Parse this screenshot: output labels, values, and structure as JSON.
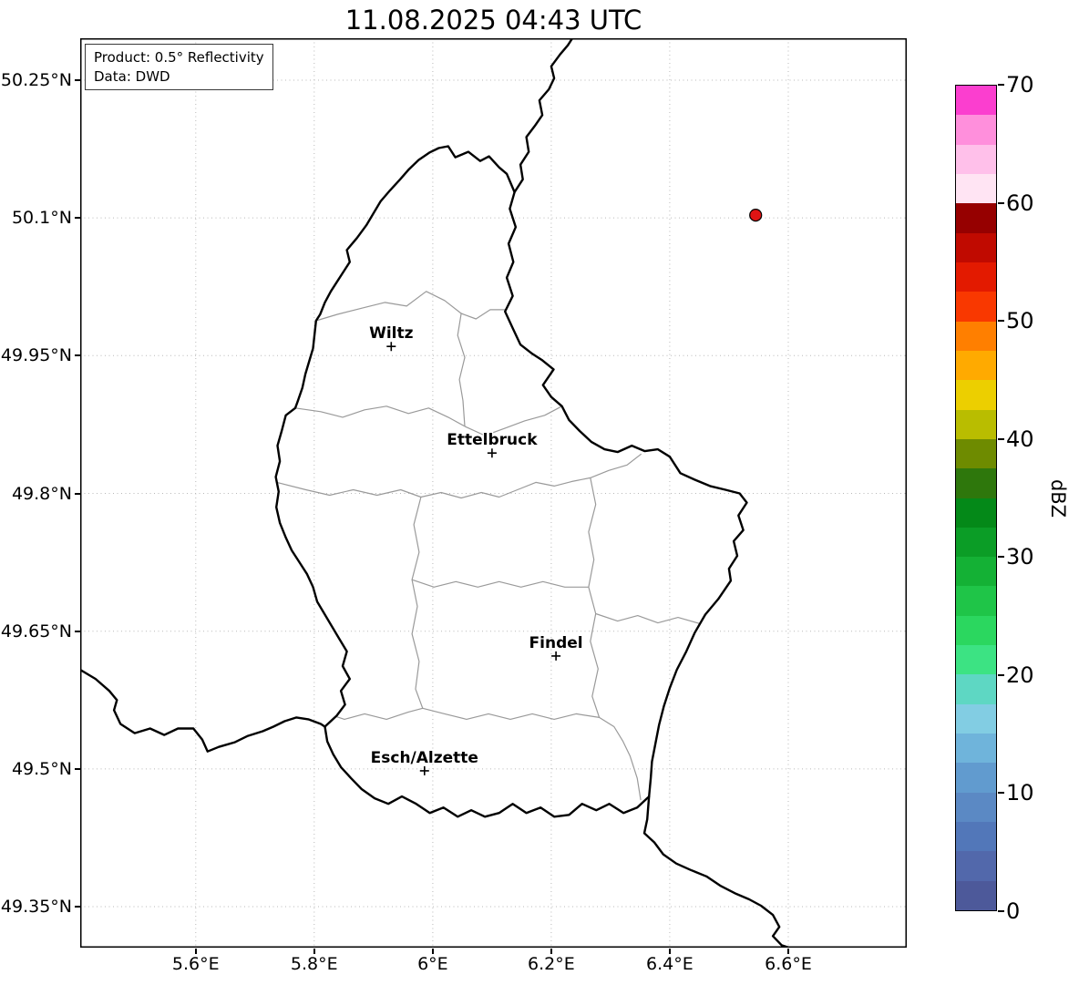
{
  "title": "11.08.2025 04:43 UTC",
  "info_box": {
    "line1": "Product: 0.5° Reflectivity",
    "line2": "Data: DWD"
  },
  "axes": {
    "x_ticks": [
      {
        "label": "5.6°E",
        "lon": 5.6
      },
      {
        "label": "5.8°E",
        "lon": 5.8
      },
      {
        "label": "6°E",
        "lon": 6.0
      },
      {
        "label": "6.2°E",
        "lon": 6.2
      },
      {
        "label": "6.4°E",
        "lon": 6.4
      },
      {
        "label": "6.6°E",
        "lon": 6.6
      }
    ],
    "y_ticks": [
      {
        "label": "50.25°N",
        "lat": 50.25
      },
      {
        "label": "50.1°N",
        "lat": 50.1
      },
      {
        "label": "49.95°N",
        "lat": 49.95
      },
      {
        "label": "49.8°N",
        "lat": 49.8
      },
      {
        "label": "49.65°N",
        "lat": 49.65
      },
      {
        "label": "49.5°N",
        "lat": 49.5
      },
      {
        "label": "49.35°N",
        "lat": 49.35
      }
    ],
    "grid_style": "dotted"
  },
  "colorbar": {
    "label": "dBZ",
    "range": [
      0,
      70
    ],
    "ticks": [
      0,
      10,
      20,
      30,
      40,
      50,
      60,
      70
    ],
    "colors": [
      "#4d599a",
      "#5268ab",
      "#5277b9",
      "#5b89c4",
      "#619bcf",
      "#6fb4db",
      "#82cde3",
      "#5ed7c3",
      "#3ce383",
      "#2bd75f",
      "#1fc548",
      "#14b135",
      "#0b9d26",
      "#048918",
      "#2e770c",
      "#6e8b00",
      "#b9bd00",
      "#eccf00",
      "#ffaa00",
      "#ff7f00",
      "#f93800",
      "#e31a00",
      "#c00a00",
      "#960000",
      "#ffe4f3",
      "#ffc0ea",
      "#ff8fdc",
      "#fb3ecf"
    ]
  },
  "cities": [
    {
      "name": "Wiltz",
      "lon": 5.93,
      "lat": 49.96
    },
    {
      "name": "Ettelbruck",
      "lon": 6.1,
      "lat": 49.844
    },
    {
      "name": "Findel",
      "lon": 6.208,
      "lat": 49.623
    },
    {
      "name": "Esch/Alzette",
      "lon": 5.986,
      "lat": 49.498
    }
  ],
  "radar_points": [
    {
      "lon": 6.545,
      "lat": 50.103,
      "color": "#e01414"
    }
  ],
  "map": {
    "lon_range": [
      5.405,
      6.8
    ],
    "lat_range": [
      49.3054,
      50.2956
    ],
    "country_border": [
      [
        6.026,
        50.178
      ],
      [
        6.038,
        50.166
      ],
      [
        6.06,
        50.172
      ],
      [
        6.08,
        50.162
      ],
      [
        6.095,
        50.167
      ],
      [
        6.112,
        50.155
      ],
      [
        6.125,
        50.148
      ],
      [
        6.138,
        50.128
      ],
      [
        6.13,
        50.11
      ],
      [
        6.14,
        50.09
      ],
      [
        6.128,
        50.072
      ],
      [
        6.136,
        50.052
      ],
      [
        6.125,
        50.035
      ],
      [
        6.135,
        50.015
      ],
      [
        6.122,
        49.998
      ],
      [
        6.135,
        49.98
      ],
      [
        6.148,
        49.962
      ],
      [
        6.168,
        49.952
      ],
      [
        6.185,
        49.945
      ],
      [
        6.204,
        49.935
      ],
      [
        6.186,
        49.918
      ],
      [
        6.2,
        49.905
      ],
      [
        6.218,
        49.895
      ],
      [
        6.23,
        49.88
      ],
      [
        6.248,
        49.868
      ],
      [
        6.268,
        49.856
      ],
      [
        6.29,
        49.848
      ],
      [
        6.312,
        49.845
      ],
      [
        6.336,
        49.852
      ],
      [
        6.358,
        49.846
      ],
      [
        6.38,
        49.848
      ],
      [
        6.4,
        49.84
      ],
      [
        6.418,
        49.822
      ],
      [
        6.442,
        49.815
      ],
      [
        6.468,
        49.808
      ],
      [
        6.494,
        49.804
      ],
      [
        6.518,
        49.8
      ],
      [
        6.53,
        49.79
      ],
      [
        6.516,
        49.776
      ],
      [
        6.524,
        49.76
      ],
      [
        6.508,
        49.748
      ],
      [
        6.514,
        49.732
      ],
      [
        6.5,
        49.718
      ],
      [
        6.503,
        49.705
      ],
      [
        6.482,
        49.685
      ],
      [
        6.46,
        49.668
      ],
      [
        6.442,
        49.648
      ],
      [
        6.428,
        49.628
      ],
      [
        6.412,
        49.608
      ],
      [
        6.4,
        49.588
      ],
      [
        6.39,
        49.568
      ],
      [
        6.382,
        49.548
      ],
      [
        6.376,
        49.528
      ],
      [
        6.37,
        49.508
      ],
      [
        6.368,
        49.49
      ],
      [
        6.365,
        49.47
      ],
      [
        6.345,
        49.458
      ],
      [
        6.322,
        49.452
      ],
      [
        6.298,
        49.462
      ],
      [
        6.276,
        49.455
      ],
      [
        6.252,
        49.462
      ],
      [
        6.23,
        49.45
      ],
      [
        6.205,
        49.448
      ],
      [
        6.182,
        49.458
      ],
      [
        6.158,
        49.452
      ],
      [
        6.135,
        49.462
      ],
      [
        6.112,
        49.452
      ],
      [
        6.088,
        49.448
      ],
      [
        6.065,
        49.455
      ],
      [
        6.042,
        49.448
      ],
      [
        6.018,
        49.458
      ],
      [
        5.995,
        49.452
      ],
      [
        5.972,
        49.462
      ],
      [
        5.948,
        49.47
      ],
      [
        5.925,
        49.462
      ],
      [
        5.902,
        49.468
      ],
      [
        5.88,
        49.478
      ],
      [
        5.862,
        49.49
      ],
      [
        5.845,
        49.502
      ],
      [
        5.832,
        49.516
      ],
      [
        5.822,
        49.53
      ],
      [
        5.818,
        49.546
      ],
      [
        5.838,
        49.558
      ],
      [
        5.852,
        49.57
      ],
      [
        5.845,
        49.585
      ],
      [
        5.86,
        49.598
      ],
      [
        5.848,
        49.612
      ],
      [
        5.855,
        49.628
      ],
      [
        5.842,
        49.642
      ],
      [
        5.83,
        49.655
      ],
      [
        5.818,
        49.668
      ],
      [
        5.805,
        49.682
      ],
      [
        5.798,
        49.698
      ],
      [
        5.788,
        49.712
      ],
      [
        5.775,
        49.725
      ],
      [
        5.762,
        49.738
      ],
      [
        5.752,
        49.752
      ],
      [
        5.742,
        49.768
      ],
      [
        5.736,
        49.785
      ],
      [
        5.74,
        49.802
      ],
      [
        5.735,
        49.818
      ],
      [
        5.742,
        49.835
      ],
      [
        5.738,
        49.852
      ],
      [
        5.745,
        49.868
      ],
      [
        5.752,
        49.885
      ],
      [
        5.768,
        49.893
      ],
      [
        5.772,
        49.9
      ],
      [
        5.78,
        49.915
      ],
      [
        5.785,
        49.93
      ],
      [
        5.792,
        49.945
      ],
      [
        5.798,
        49.958
      ],
      [
        5.8,
        49.97
      ],
      [
        5.803,
        49.988
      ],
      [
        5.81,
        49.995
      ],
      [
        5.818,
        50.008
      ],
      [
        5.828,
        50.02
      ],
      [
        5.84,
        50.032
      ],
      [
        5.85,
        50.042
      ],
      [
        5.86,
        50.052
      ],
      [
        5.855,
        50.065
      ],
      [
        5.872,
        50.078
      ],
      [
        5.888,
        50.092
      ],
      [
        5.9,
        50.105
      ],
      [
        5.912,
        50.118
      ],
      [
        5.928,
        50.13
      ],
      [
        5.945,
        50.142
      ],
      [
        5.96,
        50.153
      ],
      [
        5.976,
        50.163
      ],
      [
        5.994,
        50.171
      ],
      [
        6.01,
        50.176
      ]
    ],
    "neighbor_borders": [
      [
        [
          6.138,
          50.128
        ],
        [
          6.152,
          50.142
        ],
        [
          6.148,
          50.158
        ],
        [
          6.162,
          50.172
        ],
        [
          6.158,
          50.188
        ],
        [
          6.172,
          50.2
        ],
        [
          6.185,
          50.212
        ],
        [
          6.18,
          50.228
        ],
        [
          6.196,
          50.24
        ],
        [
          6.205,
          50.252
        ],
        [
          6.2,
          50.265
        ],
        [
          6.215,
          50.278
        ],
        [
          6.228,
          50.288
        ],
        [
          6.236,
          50.296
        ]
      ],
      [
        [
          5.405,
          49.608
        ],
        [
          5.431,
          49.598
        ],
        [
          5.454,
          49.585
        ],
        [
          5.467,
          49.575
        ],
        [
          5.462,
          49.564
        ],
        [
          5.473,
          49.549
        ],
        [
          5.497,
          49.539
        ],
        [
          5.523,
          49.544
        ],
        [
          5.547,
          49.537
        ],
        [
          5.57,
          49.544
        ],
        [
          5.596,
          49.544
        ],
        [
          5.611,
          49.532
        ],
        [
          5.62,
          49.519
        ],
        [
          5.639,
          49.524
        ],
        [
          5.666,
          49.529
        ],
        [
          5.688,
          49.536
        ],
        [
          5.713,
          49.541
        ],
        [
          5.731,
          49.546
        ],
        [
          5.75,
          49.552
        ],
        [
          5.77,
          49.556
        ],
        [
          5.79,
          49.554
        ],
        [
          5.811,
          49.549
        ],
        [
          5.818,
          49.546
        ]
      ],
      [
        [
          6.365,
          49.47
        ],
        [
          6.362,
          49.445
        ],
        [
          6.357,
          49.43
        ],
        [
          6.374,
          49.42
        ],
        [
          6.389,
          49.407
        ],
        [
          6.411,
          49.397
        ],
        [
          6.435,
          49.39
        ],
        [
          6.462,
          49.383
        ],
        [
          6.485,
          49.373
        ],
        [
          6.512,
          49.364
        ],
        [
          6.534,
          49.358
        ],
        [
          6.554,
          49.351
        ],
        [
          6.574,
          49.341
        ],
        [
          6.585,
          49.328
        ],
        [
          6.574,
          49.318
        ],
        [
          6.589,
          49.308
        ],
        [
          6.608,
          49.304
        ]
      ]
    ],
    "district_borders": [
      [
        [
          5.803,
          49.988
        ],
        [
          5.839,
          49.995
        ],
        [
          5.882,
          50.002
        ],
        [
          5.919,
          50.008
        ],
        [
          5.956,
          50.004
        ],
        [
          5.989,
          50.02
        ],
        [
          6.02,
          50.01
        ],
        [
          6.048,
          49.996
        ],
        [
          6.073,
          49.99
        ],
        [
          6.097,
          50.0
        ],
        [
          6.125,
          50.0
        ]
      ],
      [
        [
          5.768,
          49.893
        ],
        [
          5.811,
          49.889
        ],
        [
          5.848,
          49.883
        ],
        [
          5.885,
          49.891
        ],
        [
          5.922,
          49.895
        ],
        [
          5.959,
          49.887
        ],
        [
          5.993,
          49.893
        ],
        [
          6.026,
          49.883
        ],
        [
          6.054,
          49.873
        ]
      ],
      [
        [
          6.048,
          49.996
        ],
        [
          6.042,
          49.972
        ],
        [
          6.054,
          49.948
        ],
        [
          6.045,
          49.924
        ],
        [
          6.051,
          49.901
        ],
        [
          6.054,
          49.873
        ]
      ],
      [
        [
          6.054,
          49.873
        ],
        [
          6.088,
          49.863
        ],
        [
          6.122,
          49.871
        ],
        [
          6.155,
          49.879
        ],
        [
          6.189,
          49.885
        ],
        [
          6.218,
          49.895
        ]
      ],
      [
        [
          5.737,
          49.812
        ],
        [
          5.786,
          49.804
        ],
        [
          5.826,
          49.798
        ],
        [
          5.866,
          49.804
        ],
        [
          5.906,
          49.798
        ],
        [
          5.946,
          49.804
        ],
        [
          5.98,
          49.796
        ],
        [
          6.014,
          49.801
        ],
        [
          6.048,
          49.795
        ],
        [
          6.082,
          49.801
        ],
        [
          6.112,
          49.796
        ],
        [
          6.143,
          49.804
        ],
        [
          6.174,
          49.812
        ],
        [
          6.205,
          49.808
        ],
        [
          6.235,
          49.813
        ],
        [
          6.266,
          49.817
        ],
        [
          6.297,
          49.825
        ],
        [
          6.328,
          49.831
        ],
        [
          6.352,
          49.843
        ]
      ],
      [
        [
          5.98,
          49.796
        ],
        [
          5.968,
          49.766
        ],
        [
          5.977,
          49.736
        ],
        [
          5.965,
          49.706
        ],
        [
          5.974,
          49.677
        ],
        [
          5.965,
          49.647
        ],
        [
          5.977,
          49.617
        ],
        [
          5.971,
          49.587
        ],
        [
          5.983,
          49.566
        ]
      ],
      [
        [
          6.266,
          49.817
        ],
        [
          6.275,
          49.788
        ],
        [
          6.263,
          49.758
        ],
        [
          6.272,
          49.728
        ],
        [
          6.263,
          49.698
        ],
        [
          6.275,
          49.669
        ],
        [
          6.266,
          49.639
        ],
        [
          6.279,
          49.609
        ],
        [
          6.269,
          49.579
        ],
        [
          6.281,
          49.556
        ]
      ],
      [
        [
          6.275,
          49.669
        ],
        [
          6.312,
          49.661
        ],
        [
          6.346,
          49.667
        ],
        [
          6.38,
          49.659
        ],
        [
          6.414,
          49.665
        ],
        [
          6.452,
          49.658
        ]
      ],
      [
        [
          5.837,
          49.557
        ],
        [
          5.851,
          49.554
        ],
        [
          5.885,
          49.56
        ],
        [
          5.922,
          49.554
        ],
        [
          5.959,
          49.562
        ],
        [
          5.983,
          49.566
        ],
        [
          6.02,
          49.56
        ],
        [
          6.057,
          49.554
        ],
        [
          6.094,
          49.56
        ],
        [
          6.131,
          49.554
        ],
        [
          6.168,
          49.56
        ],
        [
          6.205,
          49.554
        ],
        [
          6.242,
          49.56
        ],
        [
          6.281,
          49.556
        ],
        [
          6.306,
          49.546
        ],
        [
          6.321,
          49.53
        ],
        [
          6.333,
          49.514
        ],
        [
          6.345,
          49.49
        ],
        [
          6.351,
          49.466
        ]
      ],
      [
        [
          5.965,
          49.706
        ],
        [
          6.002,
          49.698
        ],
        [
          6.039,
          49.704
        ],
        [
          6.076,
          49.698
        ],
        [
          6.112,
          49.704
        ],
        [
          6.149,
          49.698
        ],
        [
          6.186,
          49.704
        ],
        [
          6.223,
          49.698
        ],
        [
          6.263,
          49.698
        ]
      ]
    ]
  }
}
